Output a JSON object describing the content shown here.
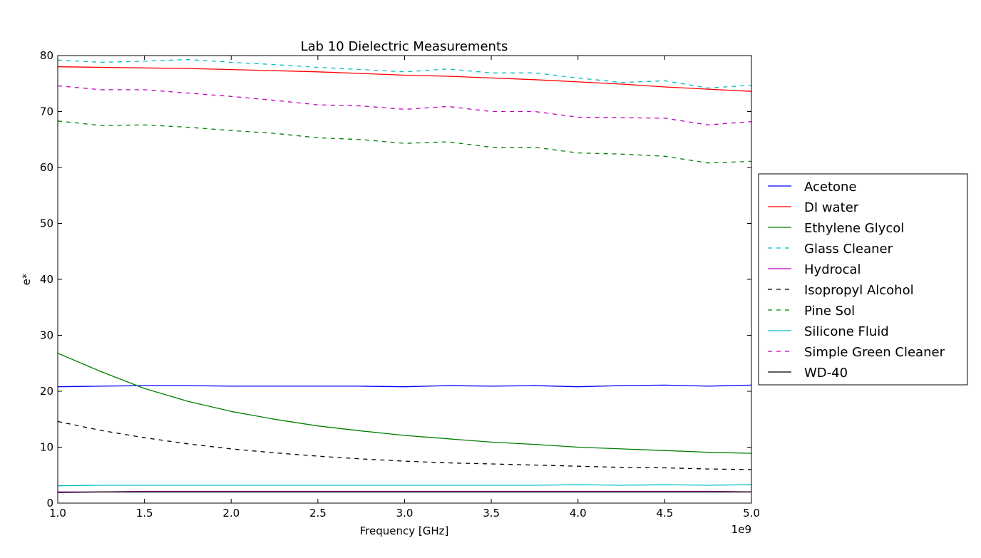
{
  "chart_data": {
    "type": "line",
    "title": "Lab 10 Dielectric Measurements",
    "xlabel": "Frequency [GHz]",
    "ylabel": "e*",
    "x_offset_label": "1e9",
    "xlim": [
      1.0,
      5.0
    ],
    "ylim": [
      0,
      80
    ],
    "x_ticks": [
      "1.0",
      "1.5",
      "2.0",
      "2.5",
      "3.0",
      "3.5",
      "4.0",
      "4.5",
      "5.0"
    ],
    "y_ticks": [
      "0",
      "10",
      "20",
      "30",
      "40",
      "50",
      "60",
      "70",
      "80"
    ],
    "grid": false,
    "legend_position": "right, outside plot",
    "x": [
      1.0,
      1.25,
      1.5,
      1.75,
      2.0,
      2.25,
      2.5,
      2.75,
      3.0,
      3.25,
      3.5,
      3.75,
      4.0,
      4.25,
      4.5,
      4.75,
      5.0
    ],
    "series": [
      {
        "name": "Acetone",
        "color": "#0000ff",
        "dash": "solid",
        "values": [
          20.8,
          20.9,
          21.0,
          21.0,
          20.9,
          20.9,
          20.9,
          20.9,
          20.8,
          21.0,
          20.9,
          21.0,
          20.8,
          21.0,
          21.1,
          20.9,
          21.1
        ]
      },
      {
        "name": "DI water",
        "color": "#ff0000",
        "dash": "solid",
        "values": [
          78.0,
          77.9,
          77.8,
          77.7,
          77.5,
          77.3,
          77.1,
          76.8,
          76.5,
          76.3,
          76.0,
          75.7,
          75.3,
          74.9,
          74.4,
          74.0,
          73.6
        ]
      },
      {
        "name": "Ethylene Glycol",
        "color": "#008000",
        "dash": "solid",
        "values": [
          26.8,
          23.5,
          20.5,
          18.2,
          16.4,
          15.0,
          13.8,
          12.9,
          12.1,
          11.5,
          10.9,
          10.5,
          10.0,
          9.7,
          9.4,
          9.1,
          8.9
        ]
      },
      {
        "name": "Glass Cleaner",
        "color": "#00bfbf",
        "dash": "dashed",
        "values": [
          79.2,
          78.8,
          79.0,
          79.3,
          78.8,
          78.4,
          77.9,
          77.5,
          77.1,
          77.6,
          76.9,
          76.9,
          76.0,
          75.2,
          75.5,
          74.2,
          74.7
        ]
      },
      {
        "name": "Hydrocal",
        "color": "#bf00bf",
        "dash": "solid",
        "values": [
          2.0,
          2.0,
          2.1,
          2.1,
          2.1,
          2.1,
          2.1,
          2.1,
          2.1,
          2.1,
          2.1,
          2.1,
          2.1,
          2.1,
          2.1,
          2.1,
          2.0
        ]
      },
      {
        "name": "Isopropyl Alcohol",
        "color": "#000000",
        "dash": "dashed",
        "values": [
          14.6,
          13.0,
          11.7,
          10.6,
          9.7,
          9.0,
          8.4,
          7.9,
          7.5,
          7.2,
          7.0,
          6.8,
          6.6,
          6.4,
          6.3,
          6.1,
          6.0
        ]
      },
      {
        "name": "Pine Sol",
        "color": "#008000",
        "dash": "dashed",
        "values": [
          68.3,
          67.5,
          67.6,
          67.2,
          66.6,
          66.1,
          65.3,
          65.0,
          64.3,
          64.6,
          63.6,
          63.6,
          62.6,
          62.4,
          62.0,
          60.8,
          61.1
        ]
      },
      {
        "name": "Silicone Fluid",
        "color": "#00bfbf",
        "dash": "solid",
        "values": [
          3.1,
          3.2,
          3.2,
          3.2,
          3.2,
          3.2,
          3.2,
          3.2,
          3.2,
          3.2,
          3.2,
          3.2,
          3.3,
          3.2,
          3.3,
          3.2,
          3.3
        ]
      },
      {
        "name": "Simple Green Cleaner",
        "color": "#bf00bf",
        "dash": "dashed",
        "values": [
          74.6,
          73.9,
          73.9,
          73.3,
          72.7,
          72.0,
          71.2,
          71.0,
          70.4,
          70.9,
          70.0,
          70.0,
          69.0,
          68.9,
          68.8,
          67.6,
          68.2
        ]
      },
      {
        "name": "WD-40",
        "color": "#000000",
        "dash": "solid",
        "values": [
          1.9,
          2.0,
          2.0,
          2.0,
          2.0,
          2.0,
          2.0,
          2.0,
          2.0,
          2.0,
          2.0,
          2.0,
          2.0,
          2.0,
          2.0,
          2.0,
          2.0
        ]
      }
    ]
  }
}
